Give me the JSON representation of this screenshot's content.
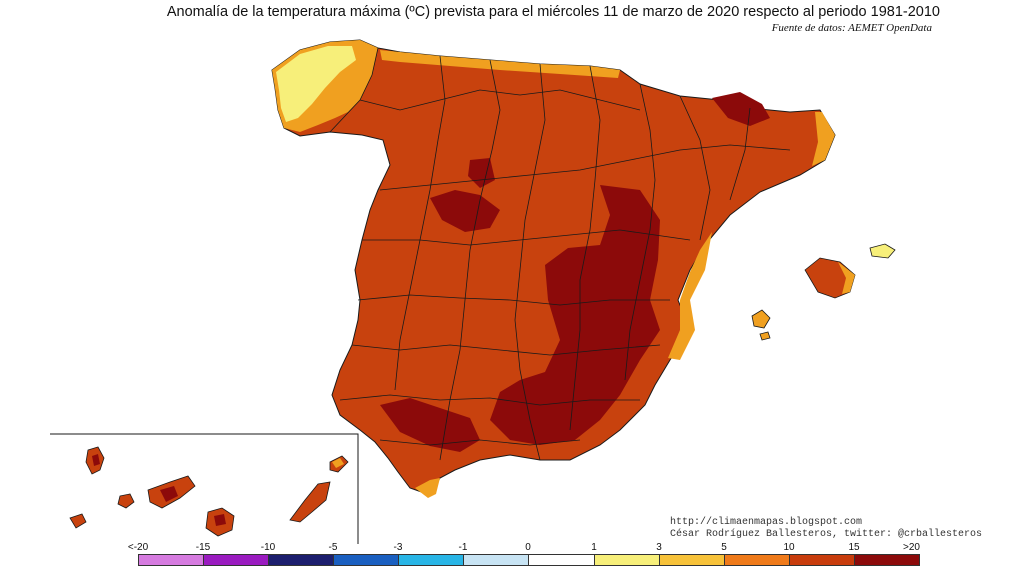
{
  "title": "Anomalía de la temperatura máxima (ºC) prevista para el miércoles 11 de marzo de 2020 respecto al periodo 1981-2010",
  "source": "Fuente de datos: AEMET OpenData",
  "credits": {
    "blog": "http://climaenmapas.blogspot.com",
    "author": "César Rodríguez Ballesteros, twitter: @crballesteros"
  },
  "legend": {
    "ticks": [
      "<-20",
      "-15",
      "-10",
      "-5",
      "-3",
      "-1",
      "0",
      "1",
      "3",
      "5",
      "10",
      "15",
      ">20"
    ],
    "colors": [
      "#d67be0",
      "#9a1bc0",
      "#1d1f6e",
      "#1a5fc0",
      "#28b5e6",
      "#c8e4f4",
      "#ffffff",
      "#f7ef7a",
      "#f7c23a",
      "#ef7a1a",
      "#c83c0c",
      "#8c0a0a",
      "#5a2a08"
    ]
  },
  "palette": {
    "main": "#c8420e",
    "hot": "#8c0a0a",
    "warm": "#f0a020",
    "mild": "#f7ef7a",
    "border": "#1a1a1a"
  }
}
